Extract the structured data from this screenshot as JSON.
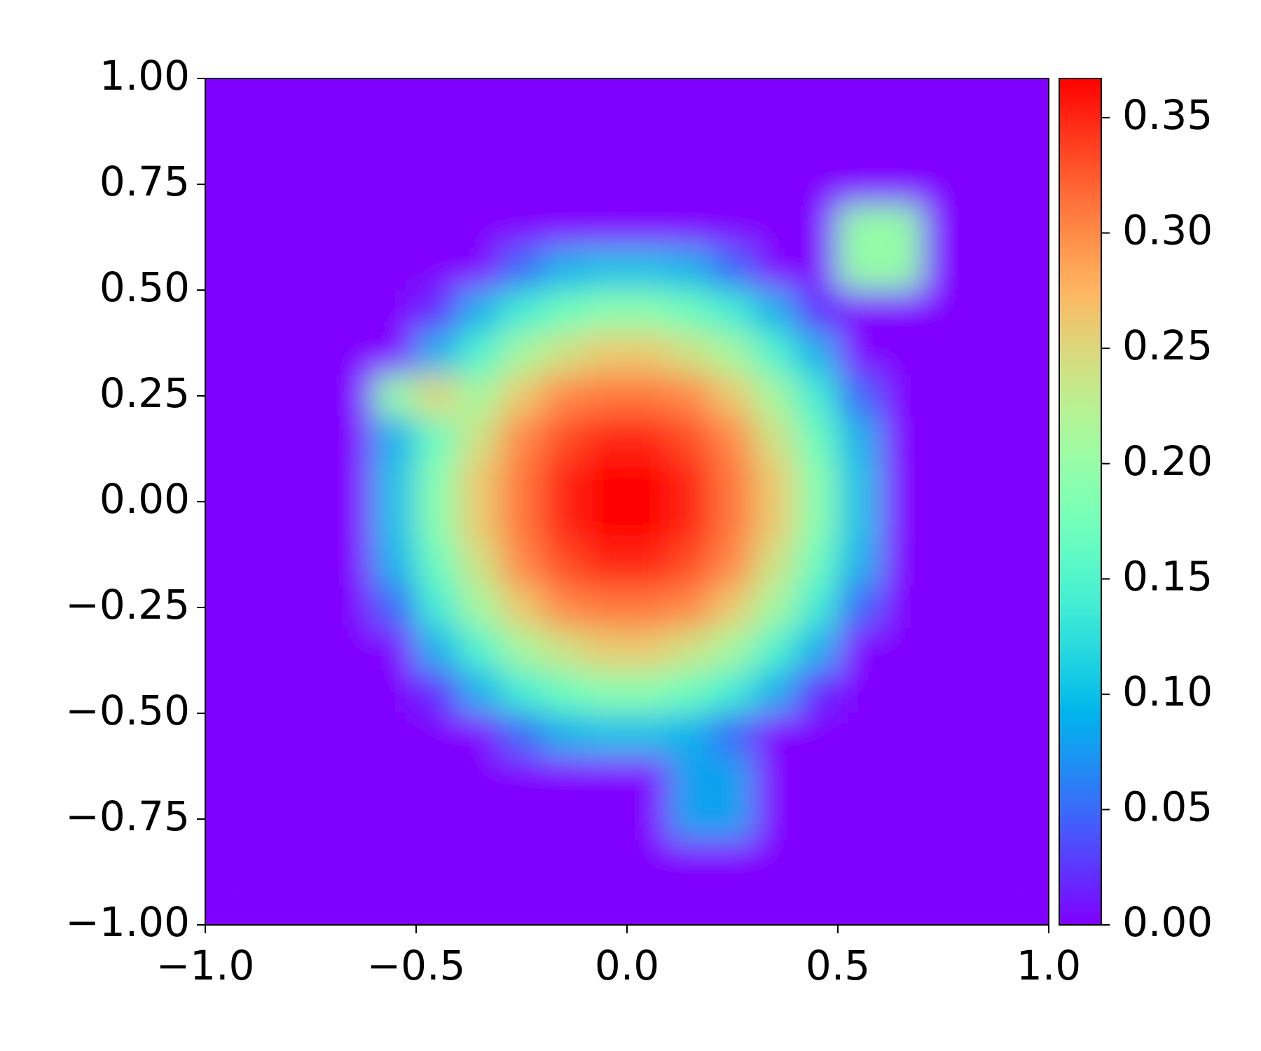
{
  "chart_data": {
    "type": "heatmap",
    "cmap": "rainbow",
    "x": [
      -0.95,
      -0.85,
      -0.75,
      -0.65,
      -0.55,
      -0.45,
      -0.35,
      -0.25,
      -0.15,
      -0.05,
      0.05,
      0.15,
      0.25,
      0.35,
      0.45,
      0.55,
      0.65,
      0.75,
      0.85,
      0.95
    ],
    "y": [
      0.95,
      0.85,
      0.75,
      0.65,
      0.55,
      0.45,
      0.35,
      0.25,
      0.15,
      0.05,
      -0.05,
      -0.15,
      -0.25,
      -0.35,
      -0.45,
      -0.55,
      -0.65,
      -0.75,
      -0.85,
      -0.95
    ],
    "z": [
      [
        0,
        0,
        0,
        0,
        0,
        0,
        0,
        0,
        0,
        0,
        0,
        0,
        0,
        0,
        0,
        0,
        0,
        0,
        0,
        0
      ],
      [
        0,
        0,
        0,
        0,
        0,
        0,
        0,
        0,
        0,
        0,
        0,
        0,
        0,
        0,
        0,
        0,
        0,
        0,
        0,
        0
      ],
      [
        0,
        0,
        0,
        0,
        0,
        0,
        0,
        0,
        0,
        0,
        0,
        0,
        0,
        0,
        0,
        0,
        0,
        0,
        0,
        0
      ],
      [
        0,
        0,
        0,
        0,
        0,
        0,
        0,
        0,
        0,
        0,
        0,
        0,
        0,
        0,
        0,
        0.2,
        0.2,
        0,
        0,
        0
      ],
      [
        0,
        0,
        0,
        0,
        0,
        0,
        0,
        0.05,
        0.09,
        0.1,
        0.1,
        0.09,
        0.05,
        0,
        0,
        0.2,
        0.2,
        0,
        0,
        0
      ],
      [
        0,
        0,
        0,
        0,
        0,
        0.02,
        0.09,
        0.14,
        0.17,
        0.19,
        0.19,
        0.17,
        0.14,
        0.09,
        0.02,
        0,
        0,
        0,
        0,
        0
      ],
      [
        0,
        0,
        0,
        0,
        0,
        0.09,
        0.15,
        0.21,
        0.24,
        0.26,
        0.26,
        0.24,
        0.21,
        0.15,
        0.09,
        0,
        0,
        0,
        0,
        0
      ],
      [
        0,
        0,
        0,
        0,
        0.2,
        0.25,
        0.21,
        0.26,
        0.3,
        0.31,
        0.31,
        0.3,
        0.26,
        0.21,
        0.14,
        0.05,
        0,
        0,
        0,
        0
      ],
      [
        0,
        0,
        0,
        0,
        0.09,
        0.17,
        0.24,
        0.3,
        0.33,
        0.35,
        0.35,
        0.33,
        0.3,
        0.24,
        0.17,
        0.09,
        0,
        0,
        0,
        0
      ],
      [
        0,
        0,
        0,
        0,
        0.1,
        0.19,
        0.26,
        0.31,
        0.35,
        0.37,
        0.37,
        0.35,
        0.31,
        0.26,
        0.19,
        0.1,
        0,
        0,
        0,
        0
      ],
      [
        0,
        0,
        0,
        0,
        0.1,
        0.19,
        0.26,
        0.31,
        0.35,
        0.37,
        0.37,
        0.35,
        0.31,
        0.26,
        0.19,
        0.1,
        0,
        0,
        0,
        0
      ],
      [
        0,
        0,
        0,
        0,
        0.09,
        0.17,
        0.24,
        0.3,
        0.33,
        0.35,
        0.35,
        0.33,
        0.3,
        0.24,
        0.17,
        0.09,
        0,
        0,
        0,
        0
      ],
      [
        0,
        0,
        0,
        0,
        0.05,
        0.14,
        0.21,
        0.26,
        0.3,
        0.31,
        0.31,
        0.3,
        0.26,
        0.21,
        0.14,
        0.05,
        0,
        0,
        0,
        0
      ],
      [
        0,
        0,
        0,
        0,
        0,
        0.09,
        0.15,
        0.21,
        0.24,
        0.26,
        0.26,
        0.24,
        0.21,
        0.15,
        0.09,
        0,
        0,
        0,
        0,
        0
      ],
      [
        0,
        0,
        0,
        0,
        0,
        0.02,
        0.09,
        0.14,
        0.17,
        0.19,
        0.19,
        0.17,
        0.14,
        0.09,
        0.02,
        0,
        0,
        0,
        0,
        0
      ],
      [
        0,
        0,
        0,
        0,
        0,
        0,
        0,
        0.05,
        0.09,
        0.1,
        0.1,
        0.09,
        0.05,
        0,
        0,
        0,
        0,
        0,
        0,
        0
      ],
      [
        0,
        0,
        0,
        0,
        0,
        0,
        0,
        0,
        0,
        0,
        0,
        0.08,
        0.08,
        0,
        0,
        0,
        0,
        0,
        0,
        0
      ],
      [
        0,
        0,
        0,
        0,
        0,
        0,
        0,
        0,
        0,
        0,
        0,
        0.08,
        0.08,
        0,
        0,
        0,
        0,
        0,
        0,
        0
      ],
      [
        0,
        0,
        0,
        0,
        0,
        0,
        0,
        0,
        0,
        0,
        0,
        0,
        0,
        0,
        0,
        0,
        0,
        0,
        0,
        0
      ],
      [
        0,
        0,
        0,
        0,
        0,
        0,
        0,
        0,
        0,
        0,
        0,
        0,
        0,
        0,
        0,
        0,
        0,
        0,
        0,
        0
      ]
    ],
    "xlim": [
      -1,
      1
    ],
    "ylim": [
      -1,
      1
    ],
    "xticks": [
      {
        "value": -1,
        "label": "−1.0"
      },
      {
        "value": -0.5,
        "label": "−0.5"
      },
      {
        "value": 0,
        "label": "0.0"
      },
      {
        "value": 0.5,
        "label": "0.5"
      },
      {
        "value": 1,
        "label": "1.0"
      }
    ],
    "yticks": [
      {
        "value": 1,
        "label": "1.00"
      },
      {
        "value": 0.75,
        "label": "0.75"
      },
      {
        "value": 0.5,
        "label": "0.50"
      },
      {
        "value": 0.25,
        "label": "0.25"
      },
      {
        "value": 0,
        "label": "0.00"
      },
      {
        "value": -0.25,
        "label": "−0.25"
      },
      {
        "value": -0.5,
        "label": "−0.50"
      },
      {
        "value": -0.75,
        "label": "−0.75"
      },
      {
        "value": -1,
        "label": "−1.00"
      }
    ],
    "colorbar": {
      "lim": [
        0,
        0.367
      ],
      "ticks": [
        {
          "value": 0,
          "label": "0.00"
        },
        {
          "value": 0.05,
          "label": "0.05"
        },
        {
          "value": 0.1,
          "label": "0.10"
        },
        {
          "value": 0.15,
          "label": "0.15"
        },
        {
          "value": 0.2,
          "label": "0.20"
        },
        {
          "value": 0.25,
          "label": "0.25"
        },
        {
          "value": 0.3,
          "label": "0.30"
        },
        {
          "value": 0.35,
          "label": "0.35"
        }
      ]
    }
  }
}
